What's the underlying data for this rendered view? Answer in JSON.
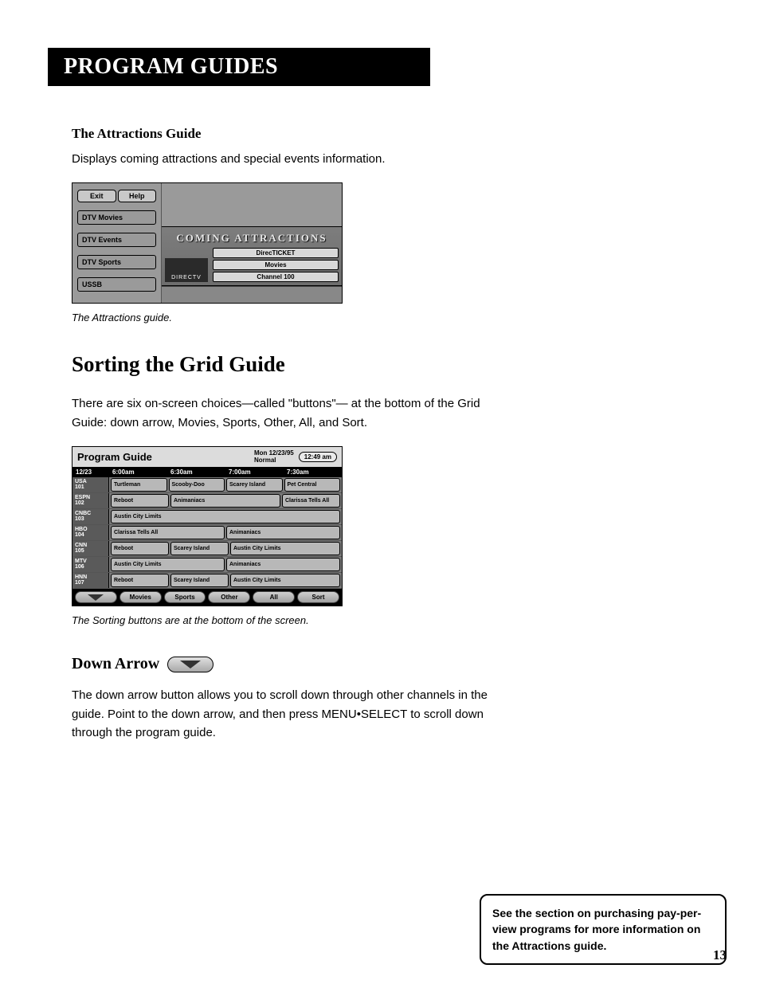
{
  "header": {
    "title": "PROGRAM GUIDES"
  },
  "attractions": {
    "heading": "The Attractions Guide",
    "desc": "Displays coming attractions and special events information.",
    "caption": "The Attractions guide.",
    "ui": {
      "exit": "Exit",
      "help": "Help",
      "tabs": [
        "DTV Movies",
        "DTV Events",
        "DTV Sports",
        "USSB"
      ],
      "banner": "COMING ATTRACTIONS",
      "logo": "DIRECTV",
      "pills": [
        "DirecTICKET",
        "Movies",
        "Channel 100"
      ]
    }
  },
  "sorting": {
    "heading": "Sorting the Grid Guide",
    "desc": "There are six on-screen choices—called \"buttons\"— at the bottom of the Grid Guide: down arrow, Movies, Sports, Other, All, and Sort.",
    "caption": "The Sorting buttons are at the bottom of the screen."
  },
  "program_guide": {
    "title": "Program Guide",
    "date_long": "Mon 12/23/95",
    "mode": "Normal",
    "clock": "12:49 am",
    "date_short": "12/23",
    "time_cols": [
      "6:00am",
      "6:30am",
      "7:00am",
      "7:30am"
    ],
    "channels": [
      {
        "name": "USA",
        "num": "101"
      },
      {
        "name": "ESPN",
        "num": "102"
      },
      {
        "name": "CNBC",
        "num": "103"
      },
      {
        "name": "HBO",
        "num": "104"
      },
      {
        "name": "CNN",
        "num": "105"
      },
      {
        "name": "MTV",
        "num": "106"
      },
      {
        "name": "HNN",
        "num": "107"
      }
    ],
    "rows": [
      [
        {
          "t": "Turtleman",
          "w": 1
        },
        {
          "t": "Scooby-Doo",
          "w": 1
        },
        {
          "t": "Scarey Island",
          "w": 1
        },
        {
          "t": "Pet Central",
          "w": 1
        }
      ],
      [
        {
          "t": "Reboot",
          "w": 1
        },
        {
          "t": "Animaniacs",
          "w": 2
        },
        {
          "t": "Clarissa Tells All",
          "w": 1
        }
      ],
      [
        {
          "t": "Austin City Limits",
          "w": 4
        }
      ],
      [
        {
          "t": "Clarissa Tells All",
          "w": 2
        },
        {
          "t": "Animaniacs",
          "w": 2
        }
      ],
      [
        {
          "t": "Reboot",
          "w": 1
        },
        {
          "t": "Scarey Island",
          "w": 1
        },
        {
          "t": "Austin City Limits",
          "w": 2
        }
      ],
      [
        {
          "t": "Austin City Limits",
          "w": 2
        },
        {
          "t": "Animaniacs",
          "w": 2
        }
      ],
      [
        {
          "t": "Reboot",
          "w": 1
        },
        {
          "t": "Scarey Island",
          "w": 1
        },
        {
          "t": "Austin City Limits",
          "w": 2
        }
      ]
    ],
    "footer": [
      "Movies",
      "Sports",
      "Other",
      "All",
      "Sort"
    ]
  },
  "down_arrow": {
    "heading": "Down Arrow",
    "desc": "The down arrow button allows you to scroll down through other channels in the guide. Point to the down arrow, and then press MENU•SELECT to scroll down through the program guide."
  },
  "note": "See the section on purchasing pay-per-view programs for more information on the Attractions guide.",
  "page": "13"
}
